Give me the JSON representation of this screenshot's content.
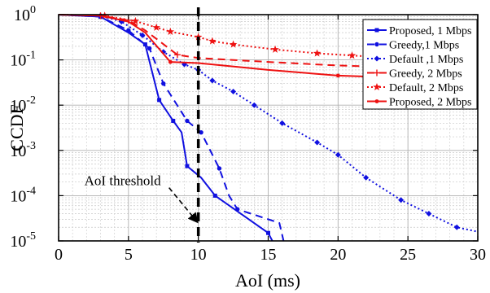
{
  "chart_data": {
    "type": "line",
    "title": "",
    "xlabel": "AoI (ms)",
    "ylabel": "CCDF",
    "xlim": [
      0,
      30
    ],
    "ylim": [
      1e-05,
      1
    ],
    "yscale": "log",
    "grid": true,
    "legend_position": "top-right",
    "x_ticks": [
      "0",
      "5",
      "10",
      "15",
      "20",
      "25",
      "30"
    ],
    "y_ticks": [
      {
        "base": "10",
        "exp": "0",
        "value": 1
      },
      {
        "base": "10",
        "exp": "-1",
        "value": 0.1
      },
      {
        "base": "10",
        "exp": "-2",
        "value": 0.01
      },
      {
        "base": "10",
        "exp": "-3",
        "value": 0.001
      },
      {
        "base": "10",
        "exp": "-4",
        "value": 0.0001
      },
      {
        "base": "10",
        "exp": "-5",
        "value": 1e-05
      }
    ],
    "threshold": {
      "x": 10,
      "label": "AoI threshold",
      "arrow_to_y": 3e-05
    },
    "series": [
      {
        "name": "Proposed, 1 Mbps",
        "color": "#1010e0",
        "dash": "solid",
        "marker": "square",
        "x": [
          0,
          3,
          5,
          6.2,
          7.2,
          8.2,
          8.8,
          9.2,
          10.2,
          11.2,
          15
        ],
        "y": [
          1,
          0.9,
          0.4,
          0.22,
          0.013,
          0.0045,
          0.0025,
          0.00045,
          0.00025,
          0.0001,
          1.5e-05
        ],
        "markers": [
          [
            3,
            0.9
          ],
          [
            6.2,
            0.22
          ],
          [
            7.2,
            0.013
          ],
          [
            8.2,
            0.0045
          ],
          [
            9.2,
            0.00045
          ],
          [
            11.2,
            0.0001
          ],
          [
            15,
            1.5e-05
          ]
        ],
        "tail": [
          [
            15.3,
            1e-05
          ]
        ]
      },
      {
        "name": "Greedy,1 Mbps",
        "color": "#1010e0",
        "dash": "dash",
        "marker": "circle",
        "x": [
          0,
          3,
          5,
          6.5,
          7.5,
          9.2,
          10.2,
          11.5,
          12.2,
          12.8,
          15.8
        ],
        "y": [
          1,
          0.9,
          0.45,
          0.18,
          0.03,
          0.0045,
          0.0025,
          0.0004,
          0.0001,
          5e-05,
          2.5e-05
        ],
        "markers": [
          [
            3,
            0.9
          ],
          [
            5,
            0.45
          ],
          [
            6.5,
            0.18
          ],
          [
            7.5,
            0.03
          ],
          [
            9.2,
            0.0045
          ],
          [
            10.2,
            0.0025
          ],
          [
            11.5,
            0.0004
          ],
          [
            12.8,
            5e-05
          ]
        ],
        "tail": [
          [
            16.1,
            1e-05
          ]
        ]
      },
      {
        "name": "Default ,1 Mbps",
        "color": "#1010e0",
        "dash": "dot",
        "marker": "diamond",
        "x": [
          0,
          3,
          4.5,
          6,
          7.5,
          9,
          10,
          11,
          12.5,
          14,
          16,
          18.5,
          20,
          22,
          24.5,
          26.5,
          28.5,
          30
        ],
        "y": [
          1,
          0.95,
          0.7,
          0.35,
          0.15,
          0.08,
          0.06,
          0.035,
          0.02,
          0.01,
          0.004,
          0.0015,
          0.0008,
          0.00025,
          8e-05,
          4e-05,
          2e-05,
          1.6e-05
        ],
        "markers": [
          [
            3,
            0.95
          ],
          [
            4.5,
            0.7
          ],
          [
            6,
            0.35
          ],
          [
            7.5,
            0.15
          ],
          [
            9,
            0.08
          ],
          [
            10,
            0.06
          ],
          [
            11,
            0.035
          ],
          [
            12.5,
            0.02
          ],
          [
            14,
            0.01
          ],
          [
            16,
            0.004
          ],
          [
            18.5,
            0.0015
          ],
          [
            20,
            0.0008
          ],
          [
            22,
            0.00025
          ],
          [
            24.5,
            8e-05
          ],
          [
            26.5,
            4e-05
          ],
          [
            28.5,
            2e-05
          ]
        ]
      },
      {
        "name": "Greedy, 2 Mbps",
        "color": "#ee1111",
        "dash": "dash",
        "marker": "plus",
        "x": [
          0,
          3,
          5,
          6.2,
          8.5,
          10,
          15,
          20,
          25,
          30
        ],
        "y": [
          1,
          0.95,
          0.75,
          0.45,
          0.13,
          0.11,
          0.09,
          0.075,
          0.068,
          0.065
        ],
        "markers": [
          [
            3,
            0.95
          ],
          [
            5,
            0.75
          ],
          [
            8.5,
            0.13
          ]
        ]
      },
      {
        "name": "Default, 2 Mbps",
        "color": "#ee1111",
        "dash": "dot",
        "marker": "star",
        "x": [
          0,
          3.3,
          5.5,
          7,
          8,
          10,
          11,
          12.5,
          15.5,
          18.5,
          21,
          24,
          26,
          28.5,
          30
        ],
        "y": [
          1,
          0.95,
          0.72,
          0.52,
          0.42,
          0.32,
          0.26,
          0.22,
          0.17,
          0.14,
          0.125,
          0.11,
          0.1,
          0.09,
          0.085
        ],
        "markers": [
          [
            3.3,
            0.95
          ],
          [
            5.5,
            0.72
          ],
          [
            7,
            0.52
          ],
          [
            8,
            0.42
          ],
          [
            10,
            0.32
          ],
          [
            11,
            0.26
          ],
          [
            12.5,
            0.22
          ],
          [
            15.5,
            0.17
          ],
          [
            18.5,
            0.14
          ],
          [
            21,
            0.125
          ],
          [
            24,
            0.11
          ]
        ]
      },
      {
        "name": "Proposed, 2 Mbps",
        "color": "#ee1111",
        "dash": "solid",
        "marker": "dot",
        "x": [
          0,
          3,
          5,
          6.2,
          8,
          10,
          15,
          20,
          25,
          30
        ],
        "y": [
          1,
          0.95,
          0.7,
          0.4,
          0.09,
          0.085,
          0.06,
          0.045,
          0.04,
          0.038
        ],
        "markers": [
          [
            8,
            0.09
          ],
          [
            20,
            0.045
          ]
        ]
      }
    ]
  }
}
